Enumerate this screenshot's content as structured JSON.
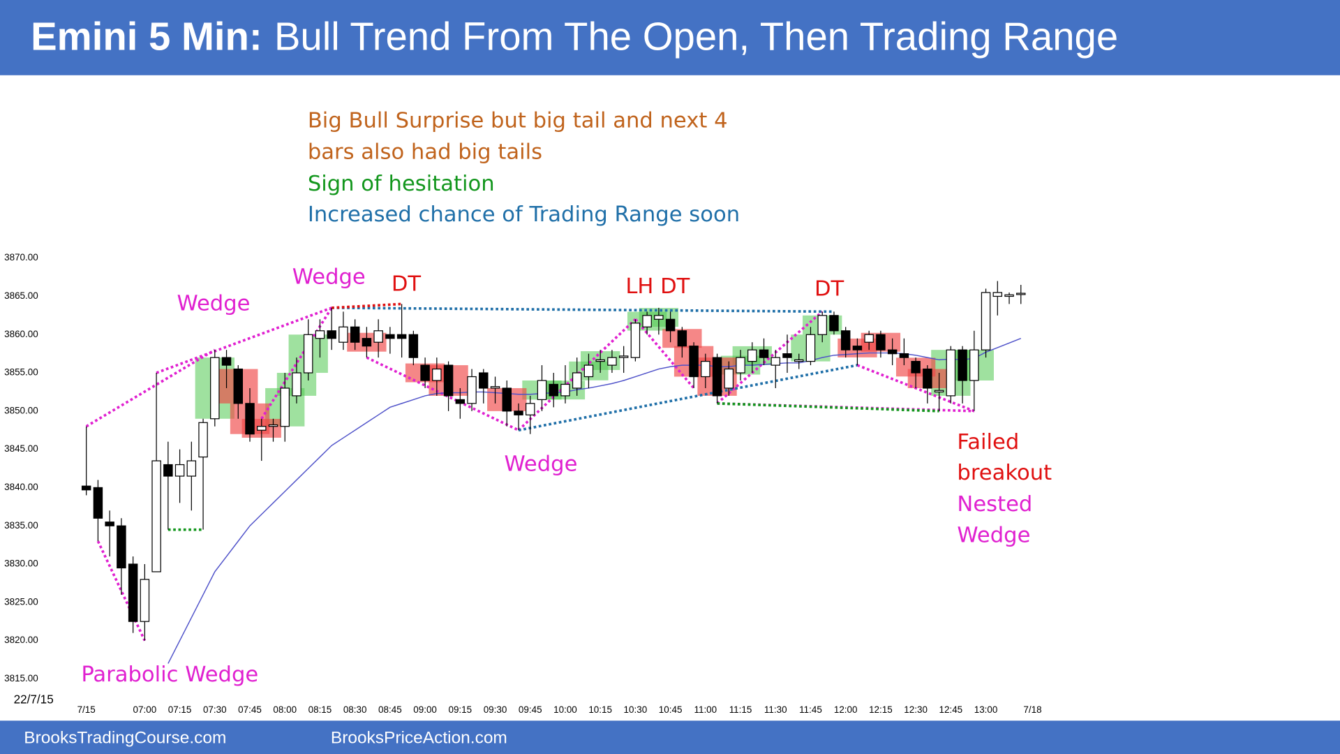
{
  "chart_data": {
    "type": "candlestick",
    "title_bold": "Emini 5 Min:",
    "title": "Bull Trend From The Open, Then Trading Range",
    "date_label": "22/7/15",
    "categories": [
      "7/15",
      null,
      null,
      null,
      null,
      "07:00",
      null,
      null,
      "07:15",
      null,
      null,
      "07:30",
      null,
      null,
      "07:45",
      null,
      null,
      "08:00",
      null,
      null,
      "08:15",
      null,
      null,
      "08:30",
      null,
      null,
      "08:45",
      null,
      null,
      "09:00",
      null,
      null,
      "09:15",
      null,
      null,
      "09:30",
      null,
      null,
      "09:45",
      null,
      null,
      "10:00",
      null,
      null,
      "10:15",
      null,
      null,
      "10:30",
      null,
      null,
      "10:45",
      null,
      null,
      "11:00",
      null,
      null,
      "11:15",
      null,
      null,
      "11:30",
      null,
      null,
      "11:45",
      null,
      null,
      "12:00",
      null,
      null,
      "12:15",
      null,
      null,
      "12:30",
      null,
      null,
      "12:45",
      null,
      null,
      "13:00",
      null,
      null,
      null,
      "7/18"
    ],
    "open": [
      3840.2,
      3840,
      3835.5,
      3835,
      3830,
      3822.5,
      3829,
      3843,
      3841.5,
      3841.5,
      3844,
      3849,
      3857,
      3855.5,
      3851,
      3847.5,
      3848,
      3848,
      3852,
      3855,
      3859.5,
      3860.5,
      3859,
      3861,
      3859.5,
      3859,
      3860,
      3860,
      3860,
      3856,
      3854,
      3856,
      3851.5,
      3851,
      3855,
      3853,
      3853,
      3850,
      3849.5,
      3851.5,
      3853.5,
      3852,
      3853,
      3854.5,
      3856.5,
      3856,
      3857,
      3857,
      3861,
      3862,
      3862,
      3860.5,
      3858.5,
      3854.5,
      3857,
      3853,
      3855,
      3856.5,
      3858,
      3856,
      3857.5,
      3856.5,
      3856.5,
      3860,
      3862.5,
      3860.5,
      3858.5,
      3859,
      3860,
      3858,
      3857.5,
      3856.5,
      3855.5,
      3852.5,
      3852,
      3858,
      3854,
      3858,
      3865,
      3865,
      3865.3,
      null
    ],
    "high": [
      3848,
      3841,
      3837,
      3836,
      3831,
      3830,
      3855,
      3846,
      3845,
      3846,
      3849,
      3858,
      3858,
      3856,
      3853,
      3849,
      3849,
      3855,
      3857,
      3862,
      3862,
      3863.5,
      3863,
      3862,
      3861,
      3862,
      3861,
      3864,
      3860.5,
      3857,
      3857,
      3856.5,
      3853,
      3855.5,
      3855.5,
      3854.5,
      3854,
      3851,
      3852,
      3856,
      3855,
      3856,
      3857,
      3857.5,
      3858,
      3858,
      3858.5,
      3862,
      3863,
      3863.5,
      3863,
      3861,
      3859,
      3857.5,
      3857.5,
      3856.5,
      3858,
      3859,
      3859.5,
      3858,
      3860,
      3857.5,
      3861,
      3863,
      3863,
      3861,
      3859.5,
      3860.5,
      3860.5,
      3859.5,
      3859.5,
      3857,
      3856,
      3855,
      3858.5,
      3858.5,
      3860.5,
      3866,
      3867,
      3865.5,
      3866.5,
      null
    ],
    "low": [
      3839,
      3833,
      3831,
      3826,
      3821,
      3820,
      3829,
      3834.5,
      3838,
      3837,
      3834.5,
      3848,
      3853,
      3849,
      3846,
      3843.5,
      3846,
      3846,
      3851,
      3854,
      3857,
      3858,
      3858,
      3858,
      3857,
      3857,
      3857.5,
      3857,
      3856,
      3853,
      3852,
      3850,
      3849,
      3850,
      3851,
      3851,
      3848,
      3847.5,
      3847,
      3850,
      3850.5,
      3851,
      3852,
      3853,
      3855,
      3855,
      3855,
      3856.5,
      3860,
      3860,
      3859,
      3857,
      3853,
      3853,
      3851,
      3852,
      3854,
      3855,
      3856,
      3853,
      3855,
      3855.5,
      3856,
      3859,
      3860,
      3857,
      3856,
      3858,
      3857,
      3856,
      3856,
      3853,
      3851,
      3850,
      3851,
      3851,
      3850,
      3857,
      3862.5,
      3864,
      3864,
      null
    ],
    "close": [
      3839.7,
      3836,
      3835,
      3829.5,
      3822.5,
      3828,
      3843.5,
      3841.5,
      3843,
      3843.5,
      3848.5,
      3857,
      3856,
      3851,
      3847,
      3848,
      3848.2,
      3853,
      3855,
      3860,
      3860.5,
      3859.5,
      3861,
      3859,
      3858.5,
      3860.5,
      3859.5,
      3859.5,
      3857,
      3854,
      3855.5,
      3852,
      3851,
      3854.5,
      3853,
      3853.2,
      3850,
      3849.5,
      3851,
      3854,
      3852,
      3853.5,
      3855,
      3856,
      3856.7,
      3857,
      3857.2,
      3861.5,
      3862.5,
      3862.5,
      3860.5,
      3858.5,
      3854.5,
      3856.5,
      3852,
      3855.5,
      3857,
      3858,
      3857,
      3857,
      3857,
      3856.7,
      3860,
      3862.5,
      3860.5,
      3858,
      3858,
      3860,
      3858,
      3857.5,
      3857,
      3855,
      3853,
      3852.7,
      3858,
      3854,
      3858,
      3865.5,
      3865.5,
      3865.2,
      3865.4,
      null
    ],
    "ema": {
      "color": "#4f52c9",
      "values": [
        null,
        null,
        null,
        null,
        null,
        null,
        null,
        3817,
        3820,
        3823,
        3826,
        3829,
        3831,
        3833,
        3835,
        3836.5,
        3838,
        3839.5,
        3841,
        3842.5,
        3844,
        3845.5,
        3846.5,
        3847.5,
        3848.5,
        3849.5,
        3850.5,
        3851,
        3851.5,
        3852,
        3852.3,
        3852.4,
        3852.4,
        3852.5,
        3852.5,
        3852.4,
        3852.3,
        3852.2,
        3852.2,
        3852.3,
        3852.4,
        3852.5,
        3852.8,
        3853,
        3853.3,
        3853.6,
        3854,
        3854.5,
        3855,
        3855.5,
        3855.8,
        3856,
        3856,
        3856,
        3855.8,
        3855.8,
        3856,
        3856,
        3856.1,
        3856.2,
        3856.3,
        3856.3,
        3856.6,
        3857,
        3857.3,
        3857.4,
        3857.5,
        3857.6,
        3857.6,
        3857.6,
        3857.5,
        3857.3,
        3857,
        3856.7,
        3856.8,
        3856.7,
        3856.9,
        3857.7,
        3858.3,
        3858.9,
        3859.5,
        null
      ]
    },
    "ylim": [
      3813,
      3872
    ],
    "yticks": [
      {
        "value": 3815,
        "label": "3815.00"
      },
      {
        "value": 3820,
        "label": "3820.00"
      },
      {
        "value": 3825,
        "label": "3825.00"
      },
      {
        "value": 3830,
        "label": "3830.00"
      },
      {
        "value": 3835,
        "label": "3835.00"
      },
      {
        "value": 3840,
        "label": "3840.00"
      },
      {
        "value": 3845,
        "label": "3845.00"
      },
      {
        "value": 3850,
        "label": "3850.00"
      },
      {
        "value": 3855,
        "label": "3855.00"
      },
      {
        "value": 3860,
        "label": "3860.00"
      },
      {
        "value": 3865,
        "label": "3865.00"
      },
      {
        "value": 3870,
        "label": "3870.00"
      }
    ],
    "grid": false,
    "annotations": [
      {
        "text": "Big Bull Surprise but big tail and next 4",
        "color": "#c0631c"
      },
      {
        "text": "bars also had big tails",
        "color": "#c0631c"
      },
      {
        "text": "Sign of hesitation",
        "color": "#12961c"
      },
      {
        "text": "Increased chance of Trading Range soon",
        "color": "#1f6fa8"
      },
      {
        "text": "Wedge",
        "color": "#e020d0"
      },
      {
        "text": "Wedge",
        "color": "#e020d0"
      },
      {
        "text": "DT",
        "color": "#e01010"
      },
      {
        "text": "LH DT",
        "color": "#e01010"
      },
      {
        "text": "DT",
        "color": "#e01010"
      },
      {
        "text": "Wedge",
        "color": "#e020d0"
      },
      {
        "text": "Parabolic Wedge",
        "color": "#e020d0"
      },
      {
        "text": "Failed",
        "color": "#e01010"
      },
      {
        "text": "breakout",
        "color": "#e01010"
      },
      {
        "text": "Nested",
        "color": "#e020d0"
      },
      {
        "text": "Wedge",
        "color": "#e020d0"
      }
    ]
  },
  "footer": [
    "BrooksTradingCourse.com",
    "BrooksPriceAction.com"
  ]
}
